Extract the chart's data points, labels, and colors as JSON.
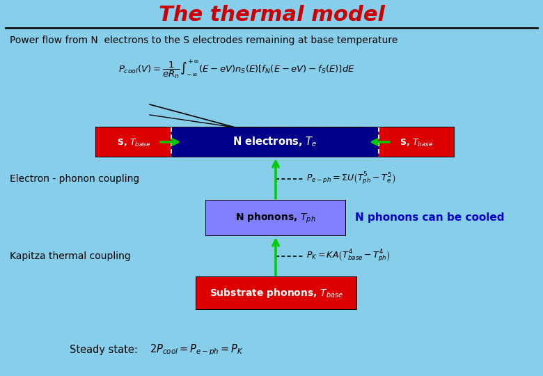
{
  "title": "The thermal model",
  "title_color": "#cc0000",
  "bg_color": "#87ceeb",
  "subtitle": "Power flow from N  electrons to the S electrodes remaining at base temperature",
  "formula_main": "$P_{cool}(V)=\\dfrac{1}{eR_n}\\int_{-\\infty}^{+\\infty}(E-eV)n_S(E)[f_N(E-eV)-f_S(E)]dE$",
  "box_electron_color": "#00008b",
  "box_S_color": "#dd0000",
  "box_phonon_color": "#8080ff",
  "box_substrate_color": "#dd0000",
  "arrow_color": "#00cc00",
  "text_white": "#ffffff",
  "text_black": "#000000",
  "text_blue": "#0000cc",
  "label_electron": "N electrons, $T_e$",
  "label_S_left": "S, $T_{base}$",
  "label_S_right": "S, $T_{base}$",
  "label_phonon": "N phonons, $T_{ph}$",
  "label_substrate": "Substrate phonons, $T_{base}$",
  "label_electron_coupling": "Electron - phonon coupling",
  "label_kapitza": "Kapitza thermal coupling",
  "formula_ephon": "$P_{e-ph}=\\Sigma U\\left(T_{ph}^5-T_e^{5}\\right)$",
  "formula_kapitza": "$P_K=KA\\left(T_{base}^4-T_{ph}^4\\right)$",
  "formula_steady": "$2P_{cool}=P_{e-ph}=P_K$",
  "label_phonon_cooled": "N phonons can be cooled",
  "label_steady_state": "Steady state:",
  "fig_width": 7.8,
  "fig_height": 5.4,
  "dpi": 100
}
